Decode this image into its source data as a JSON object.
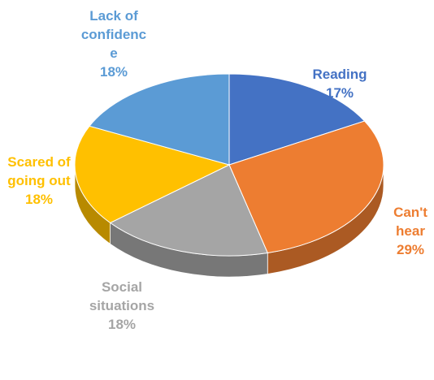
{
  "chart_data": {
    "type": "pie",
    "categories": [
      "Reading",
      "Can't hear",
      "Social situations",
      "Scared of going out",
      "Lack of confidence"
    ],
    "values": [
      17,
      29,
      18,
      18,
      18
    ],
    "value_labels": [
      "17%",
      "29%",
      "18%",
      "18%",
      "18%"
    ],
    "colors": [
      "#4472c4",
      "#ed7d31",
      "#a5a5a5",
      "#ffc000",
      "#5b9bd5"
    ]
  }
}
